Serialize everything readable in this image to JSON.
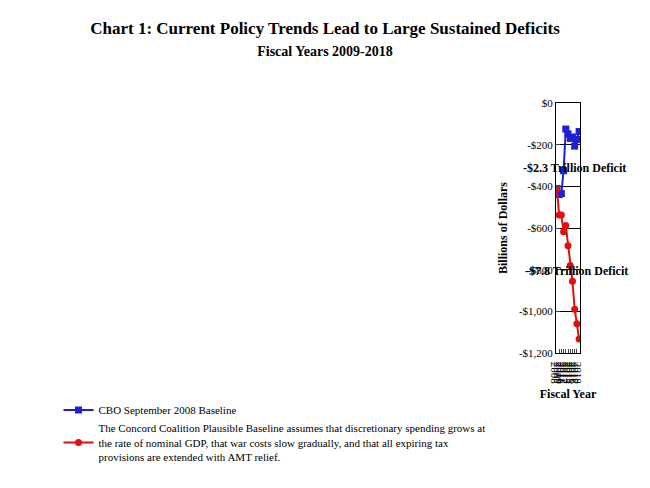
{
  "chart_data": {
    "type": "line",
    "title": "Chart 1: Current Policy Trends Lead to Large Sustained Deficits",
    "subtitle": "Fiscal Years 2009-2018",
    "x_label": "Fiscal Year",
    "y_label": "Billions of Dollars",
    "x": [
      2008,
      2009,
      2010,
      2011,
      2012,
      2013,
      2014,
      2015,
      2016,
      2017,
      2018
    ],
    "series": [
      {
        "name": "CBO September 2008 Baseline",
        "color": "#1f1fd6",
        "marker": "square",
        "line_style": "solid",
        "values": [
          -410,
          -440,
          -435,
          -325,
          -125,
          -148,
          -170,
          -163,
          -207,
          -175,
          -137
        ]
      },
      {
        "name": "The Concord Coalition Plausible Baseline assumes that discretionary spending grows at the rate of nominal GDP, that war costs slow gradually, and that all expiring tax provisions are extended with AMT relief.",
        "color": "#e01010",
        "marker": "circle",
        "line_style": "solid",
        "values": [
          -410,
          -538,
          -537,
          -618,
          -588,
          -685,
          -780,
          -855,
          -990,
          -1060,
          -1133
        ]
      }
    ],
    "annotations": [
      {
        "text": "-$2.3 Trillion Deficit"
      },
      {
        "text": "-$7.8 Trillion Deficit"
      }
    ],
    "xlim": [
      2007.6,
      2018.4
    ],
    "xticks": [
      2008,
      2009,
      2010,
      2011,
      2012,
      2013,
      2014,
      2015,
      2016,
      2017,
      2018
    ],
    "ylim": [
      -1200,
      0
    ],
    "yticks": [
      {
        "value": -1200,
        "label": "-$1,200"
      },
      {
        "value": -1000,
        "label": "-$1,000"
      },
      {
        "value": -800,
        "label": "-$800"
      },
      {
        "value": -600,
        "label": "-$600"
      },
      {
        "value": -400,
        "label": "-$400"
      },
      {
        "value": -200,
        "label": "-$200"
      },
      {
        "value": 0,
        "label": "$0"
      }
    ],
    "grid": true,
    "legend": "bottom"
  }
}
